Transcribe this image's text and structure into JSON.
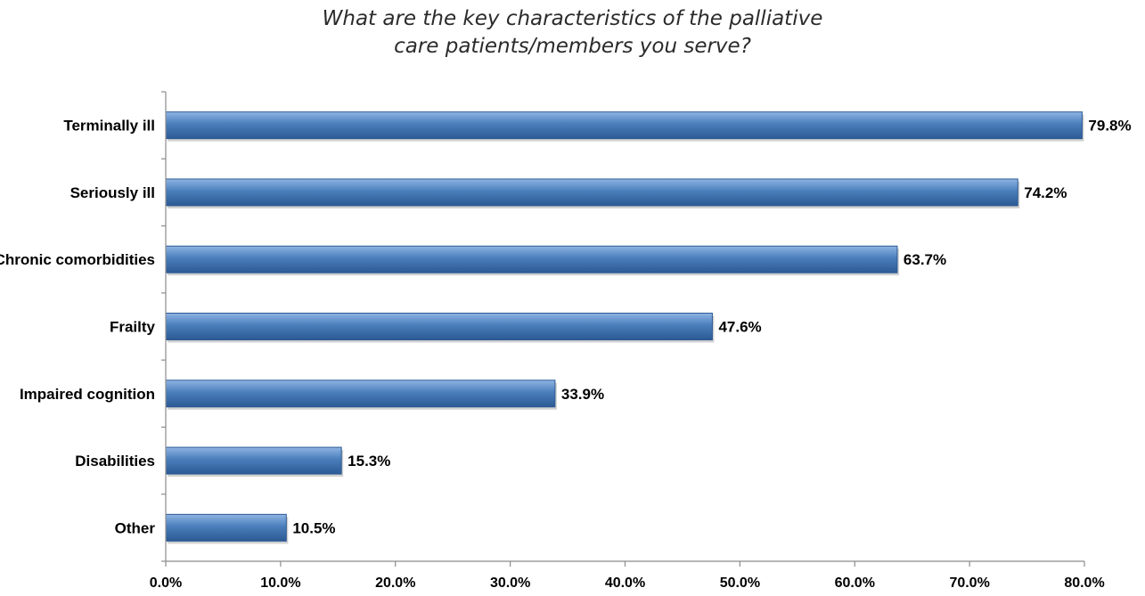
{
  "chart_data": {
    "type": "bar",
    "orientation": "horizontal",
    "title_lines": [
      "What are the key characteristics of the palliative",
      "care patients/members you serve?"
    ],
    "categories": [
      "Terminally ill",
      "Seriously ill",
      "Chronic comorbidities",
      "Frailty",
      "Impaired cognition",
      "Disabilities",
      "Other"
    ],
    "values": [
      79.8,
      74.2,
      63.7,
      47.6,
      33.9,
      15.3,
      10.5
    ],
    "value_labels": [
      "79.8%",
      "74.2%",
      "63.7%",
      "47.6%",
      "33.9%",
      "15.3%",
      "10.5%"
    ],
    "x_ticks": [
      0,
      10,
      20,
      30,
      40,
      50,
      60,
      70,
      80
    ],
    "x_tick_labels": [
      "0.0%",
      "10.0%",
      "20.0%",
      "30.0%",
      "40.0%",
      "50.0%",
      "60.0%",
      "70.0%",
      "80.0%"
    ],
    "xlim": [
      0,
      80
    ],
    "xlabel": "",
    "ylabel": "",
    "grid": false,
    "legend": "none",
    "bar_color": "#4A7EBB",
    "bar_color_light": "#8FB4E3",
    "bar_color_dark": "#2C5A94"
  }
}
